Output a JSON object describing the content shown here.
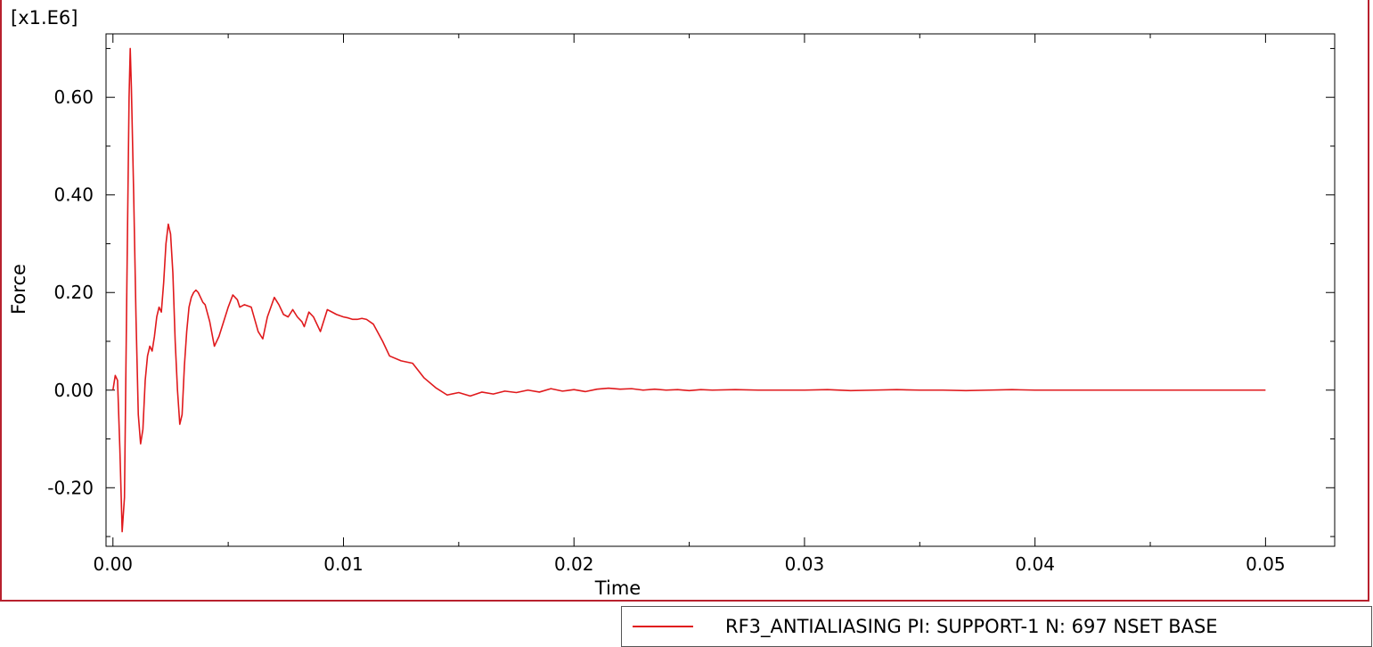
{
  "chart_data": {
    "type": "line",
    "title": "",
    "xlabel": "Time",
    "ylabel": "Force",
    "y_scale_label": "[x1.E6]",
    "xlim": [
      -0.0003,
      0.053
    ],
    "ylim": [
      -0.32,
      0.73
    ],
    "x_ticks": [
      0.0,
      0.01,
      0.02,
      0.03,
      0.04,
      0.05
    ],
    "x_tick_labels": [
      "0.00",
      "0.01",
      "0.02",
      "0.03",
      "0.04",
      "0.05"
    ],
    "y_ticks": [
      -0.2,
      0.0,
      0.2,
      0.4,
      0.6
    ],
    "y_tick_labels": [
      "-0.20",
      "0.00",
      "0.20",
      "0.40",
      "0.60"
    ],
    "grid": false,
    "legend_position": "bottom-right",
    "series": [
      {
        "name": "RF3_ANTIALIASING PI: SUPPORT-1 N: 697 NSET BASE",
        "color": "#e0191c",
        "x": [
          0.0,
          0.0001,
          0.0002,
          0.0003,
          0.0004,
          0.0005,
          0.0006,
          0.0007,
          0.00075,
          0.0008,
          0.0009,
          0.001,
          0.0011,
          0.0012,
          0.0013,
          0.0014,
          0.0015,
          0.0016,
          0.0017,
          0.0018,
          0.0019,
          0.002,
          0.0021,
          0.0022,
          0.0023,
          0.0024,
          0.0025,
          0.0026,
          0.0027,
          0.0028,
          0.0029,
          0.003,
          0.0031,
          0.0032,
          0.0033,
          0.0034,
          0.0035,
          0.0036,
          0.0037,
          0.0038,
          0.0039,
          0.004,
          0.0042,
          0.0044,
          0.0046,
          0.0048,
          0.005,
          0.0052,
          0.0054,
          0.0055,
          0.0057,
          0.006,
          0.0063,
          0.0065,
          0.0067,
          0.007,
          0.0072,
          0.0074,
          0.0076,
          0.0078,
          0.008,
          0.0082,
          0.0083,
          0.0085,
          0.0087,
          0.009,
          0.0093,
          0.0095,
          0.0097,
          0.01,
          0.0102,
          0.0104,
          0.0106,
          0.0108,
          0.011,
          0.0113,
          0.0117,
          0.012,
          0.0125,
          0.013,
          0.0135,
          0.014,
          0.0145,
          0.015,
          0.0155,
          0.016,
          0.0165,
          0.017,
          0.0175,
          0.018,
          0.0185,
          0.019,
          0.0195,
          0.02,
          0.0205,
          0.021,
          0.0215,
          0.022,
          0.0225,
          0.023,
          0.0235,
          0.024,
          0.0245,
          0.025,
          0.0255,
          0.026,
          0.027,
          0.028,
          0.029,
          0.03,
          0.031,
          0.032,
          0.033,
          0.034,
          0.035,
          0.036,
          0.037,
          0.038,
          0.039,
          0.04,
          0.041,
          0.042,
          0.043,
          0.044,
          0.045,
          0.046,
          0.047,
          0.048,
          0.049,
          0.05
        ],
        "y": [
          0.0,
          0.03,
          0.02,
          -0.12,
          -0.29,
          -0.22,
          0.2,
          0.6,
          0.7,
          0.62,
          0.4,
          0.15,
          -0.05,
          -0.11,
          -0.08,
          0.02,
          0.07,
          0.09,
          0.08,
          0.11,
          0.15,
          0.17,
          0.16,
          0.22,
          0.3,
          0.34,
          0.32,
          0.24,
          0.1,
          0.0,
          -0.07,
          -0.05,
          0.05,
          0.12,
          0.17,
          0.19,
          0.2,
          0.205,
          0.2,
          0.19,
          0.18,
          0.175,
          0.14,
          0.09,
          0.11,
          0.14,
          0.17,
          0.195,
          0.185,
          0.17,
          0.175,
          0.17,
          0.12,
          0.105,
          0.15,
          0.19,
          0.175,
          0.155,
          0.15,
          0.165,
          0.15,
          0.14,
          0.13,
          0.16,
          0.15,
          0.12,
          0.165,
          0.16,
          0.155,
          0.15,
          0.148,
          0.145,
          0.145,
          0.147,
          0.145,
          0.135,
          0.1,
          0.07,
          0.06,
          0.055,
          0.025,
          0.005,
          -0.01,
          -0.005,
          -0.012,
          -0.004,
          -0.008,
          -0.002,
          -0.005,
          0.0,
          -0.004,
          0.003,
          -0.002,
          0.001,
          -0.003,
          0.002,
          0.004,
          0.002,
          0.003,
          0.0,
          0.002,
          0.0,
          0.001,
          -0.001,
          0.001,
          0.0,
          0.001,
          0.0,
          0.0,
          0.0,
          0.001,
          -0.001,
          0.0,
          0.001,
          0.0,
          0.0,
          -0.001,
          0.0,
          0.001,
          0.0,
          0.0,
          0.0,
          0.0,
          0.0,
          0.0,
          0.0,
          0.0,
          0.0,
          0.0,
          0.0
        ]
      }
    ]
  }
}
